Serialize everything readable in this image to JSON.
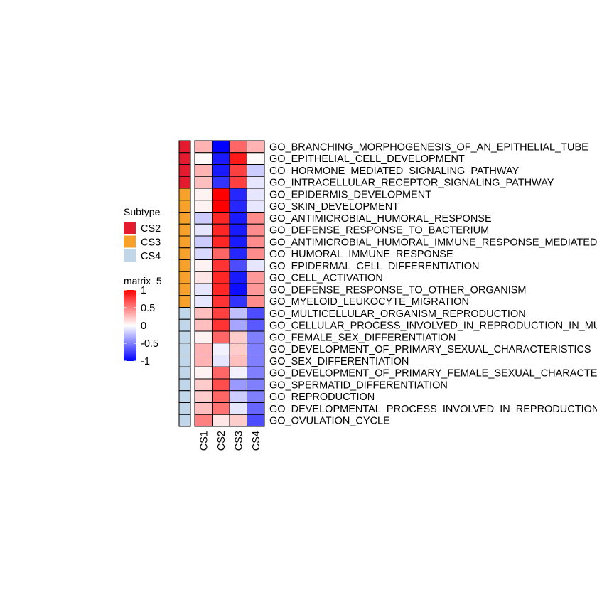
{
  "chart_data": {
    "type": "heatmap",
    "columns": [
      "CS1",
      "CS2",
      "CS3",
      "CS4"
    ],
    "rows": [
      {
        "label": "GO_BRANCHING_MORPHOGENESIS_OF_AN_EPITHELIAL_TUBE",
        "subtype": "CS2",
        "values": [
          0.3,
          -1.0,
          0.6,
          0.3
        ]
      },
      {
        "label": "GO_EPITHELIAL_CELL_DEVELOPMENT",
        "subtype": "CS2",
        "values": [
          0.02,
          -0.9,
          0.9,
          0.02
        ]
      },
      {
        "label": "GO_HORMONE_MEDIATED_SIGNALING_PATHWAY",
        "subtype": "CS2",
        "values": [
          0.3,
          -0.9,
          0.75,
          -0.2
        ]
      },
      {
        "label": "GO_INTRACELLULAR_RECEPTOR_SIGNALING_PATHWAY",
        "subtype": "CS2",
        "values": [
          0.25,
          -0.8,
          0.75,
          -0.1
        ]
      },
      {
        "label": "GO_EPIDERMIS_DEVELOPMENT",
        "subtype": "CS3",
        "values": [
          0.05,
          1.0,
          -0.85,
          -0.1
        ]
      },
      {
        "label": "GO_SKIN_DEVELOPMENT",
        "subtype": "CS3",
        "values": [
          0.05,
          1.0,
          -0.85,
          -0.1
        ]
      },
      {
        "label": "GO_ANTIMICROBIAL_HUMORAL_RESPONSE",
        "subtype": "CS3",
        "values": [
          -0.2,
          0.85,
          -0.9,
          0.45
        ]
      },
      {
        "label": "GO_DEFENSE_RESPONSE_TO_BACTERIUM",
        "subtype": "CS3",
        "values": [
          -0.1,
          0.85,
          -0.9,
          0.45
        ]
      },
      {
        "label": "GO_ANTIMICROBIAL_HUMORAL_IMMUNE_RESPONSE_MEDIATED_BY_ANTIMICROBIAL_PEPTIDE",
        "subtype": "CS3",
        "values": [
          -0.2,
          0.85,
          -0.9,
          0.45
        ]
      },
      {
        "label": "GO_HUMORAL_IMMUNE_RESPONSE",
        "subtype": "CS3",
        "values": [
          -0.15,
          0.6,
          -0.85,
          0.45
        ]
      },
      {
        "label": "GO_EPIDERMAL_CELL_DIFFERENTIATION",
        "subtype": "CS3",
        "values": [
          0.05,
          0.8,
          -0.7,
          -0.1
        ]
      },
      {
        "label": "GO_CELL_ACTIVATION",
        "subtype": "CS3",
        "values": [
          0.1,
          0.85,
          -0.9,
          0.4
        ]
      },
      {
        "label": "GO_DEFENSE_RESPONSE_TO_OTHER_ORGANISM",
        "subtype": "CS3",
        "values": [
          -0.1,
          0.85,
          -0.95,
          0.4
        ]
      },
      {
        "label": "GO_MYELOID_LEUKOCYTE_MIGRATION",
        "subtype": "CS3",
        "values": [
          -0.1,
          0.8,
          -0.8,
          0.45
        ]
      },
      {
        "label": "GO_MULTICELLULAR_ORGANISM_REPRODUCTION",
        "subtype": "CS4",
        "values": [
          0.25,
          0.75,
          -0.25,
          -0.7
        ]
      },
      {
        "label": "GO_CELLULAR_PROCESS_INVOLVED_IN_REPRODUCTION_IN_MULTICELLULAR_ORGANISM",
        "subtype": "CS4",
        "values": [
          0.25,
          0.8,
          -0.35,
          -0.65
        ]
      },
      {
        "label": "GO_FEMALE_SEX_DIFFERENTIATION",
        "subtype": "CS4",
        "values": [
          0.05,
          0.6,
          0.2,
          -0.5
        ]
      },
      {
        "label": "GO_DEVELOPMENT_OF_PRIMARY_SEXUAL_CHARACTERISTICS",
        "subtype": "CS4",
        "values": [
          0.3,
          -0.05,
          0.2,
          -0.5
        ]
      },
      {
        "label": "GO_SEX_DIFFERENTIATION",
        "subtype": "CS4",
        "values": [
          0.3,
          -0.1,
          0.25,
          -0.5
        ]
      },
      {
        "label": "GO_DEVELOPMENT_OF_PRIMARY_FEMALE_SEXUAL_CHARACTERISTICS",
        "subtype": "CS4",
        "values": [
          0.05,
          0.6,
          -0.05,
          -0.5
        ]
      },
      {
        "label": "GO_SPERMATID_DIFFERENTIATION",
        "subtype": "CS4",
        "values": [
          0.2,
          0.7,
          -0.4,
          -0.5
        ]
      },
      {
        "label": "GO_REPRODUCTION",
        "subtype": "CS4",
        "values": [
          0.2,
          0.6,
          -0.2,
          -0.5
        ]
      },
      {
        "label": "GO_DEVELOPMENTAL_PROCESS_INVOLVED_IN_REPRODUCTION",
        "subtype": "CS4",
        "values": [
          0.25,
          0.55,
          -0.1,
          -0.6
        ]
      },
      {
        "label": "GO_OVULATION_CYCLE",
        "subtype": "CS4",
        "values": [
          0.5,
          0.1,
          0.2,
          -0.7
        ]
      }
    ],
    "color_scale": {
      "min": -1,
      "mid": 0,
      "max": 1,
      "low": "#0000ff",
      "mid_color": "#ffffff",
      "high": "#ff0000"
    },
    "subtype_legend": {
      "title": "Subtype",
      "items": [
        {
          "name": "CS2",
          "color": "#e41a2e"
        },
        {
          "name": "CS3",
          "color": "#f7a12a"
        },
        {
          "name": "CS4",
          "color": "#c2d6ea"
        }
      ]
    },
    "value_legend": {
      "title": "matrix_5",
      "breaks": [
        1,
        0.5,
        0,
        -0.5,
        -1
      ],
      "break_labels": [
        "1",
        "0.5",
        "0",
        "-0.5",
        "-1"
      ]
    }
  }
}
